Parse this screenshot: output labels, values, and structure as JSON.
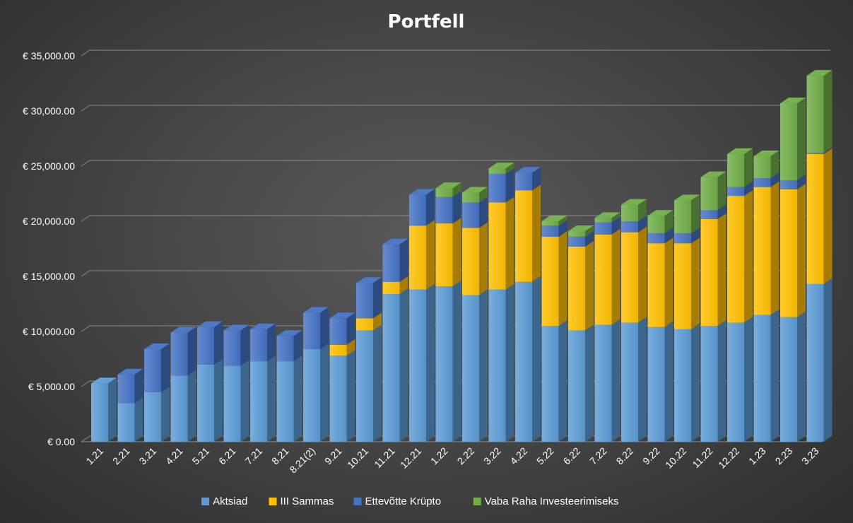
{
  "chart_data": {
    "type": "bar",
    "stacked": true,
    "three_d": true,
    "title": "Portfell",
    "xlabel": "",
    "ylabel": "",
    "ylim": [
      0,
      35000
    ],
    "ytick_step": 5000,
    "ytick_labels": [
      "€ 0.00",
      "€ 5,000.00",
      "€ 10,000.00",
      "€ 15,000.00",
      "€ 20,000.00",
      "€ 25,000.00",
      "€ 30,000.00",
      "€ 35,000.00"
    ],
    "grid": true,
    "legend_position": "bottom",
    "categories": [
      "1.21",
      "2.21",
      "3.21",
      "4.21",
      "5.21",
      "6.21",
      "7.21",
      "8.21",
      "8.21(2)",
      "9.21",
      "10.21",
      "11.21",
      "12.21",
      "1.22",
      "2.22",
      "3.22",
      "4.22",
      "5.22",
      "6.22",
      "7.22",
      "8.22",
      "9.22",
      "10.22",
      "11.22",
      "12.22",
      "1.23",
      "2.23",
      "3.23"
    ],
    "series": [
      {
        "name": "Aktsiad",
        "color": "#5b9bd5",
        "values": [
          5300,
          3500,
          4500,
          6000,
          7000,
          6900,
          7300,
          7300,
          8400,
          7800,
          10100,
          13400,
          13800,
          14100,
          13300,
          13800,
          14500,
          10500,
          10100,
          10600,
          10800,
          10400,
          10200,
          10500,
          10800,
          11500,
          11300,
          14300
        ]
      },
      {
        "name": "III Sammas",
        "color": "#ffc000",
        "values": [
          0,
          0,
          0,
          0,
          0,
          0,
          0,
          0,
          0,
          1000,
          1100,
          1100,
          5800,
          5700,
          6100,
          7900,
          8300,
          8100,
          7600,
          8200,
          8200,
          7600,
          7800,
          9700,
          11500,
          11600,
          11600,
          11800
        ]
      },
      {
        "name": "Ettevõtte Krüpto",
        "color": "#4472c4",
        "values": [
          0,
          2600,
          3900,
          3900,
          3400,
          3200,
          2900,
          2300,
          3300,
          2400,
          3200,
          3400,
          2800,
          2400,
          2300,
          2600,
          1600,
          1000,
          900,
          1100,
          1000,
          900,
          900,
          800,
          800,
          800,
          800,
          100
        ]
      },
      {
        "name": "Vaba Raha Investeerimiseks",
        "color": "#70ad47",
        "values": [
          0,
          0,
          0,
          0,
          0,
          0,
          0,
          0,
          0,
          0,
          0,
          0,
          0,
          800,
          900,
          500,
          0,
          400,
          500,
          400,
          1500,
          1600,
          3000,
          3000,
          3000,
          2000,
          7000,
          7000
        ]
      }
    ]
  }
}
